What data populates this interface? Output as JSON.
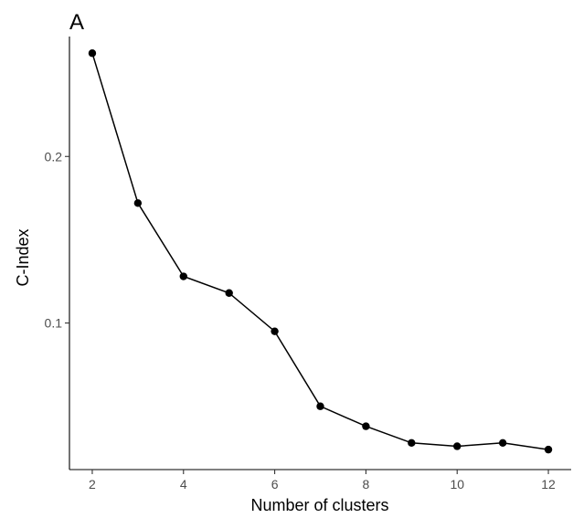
{
  "chart_data": {
    "type": "line",
    "tag": "A",
    "xlabel": "Number of clusters",
    "ylabel": "C-Index",
    "xlim": [
      1.5,
      12.5
    ],
    "ylim": [
      0.012,
      0.272
    ],
    "x_ticks": [
      2,
      4,
      6,
      8,
      10,
      12
    ],
    "y_ticks": [
      0.1,
      0.2
    ],
    "y_tick_labels": [
      "0.1",
      "0.2"
    ],
    "grid": false,
    "series": [
      {
        "x": [
          2,
          3,
          4,
          5,
          6,
          7,
          8,
          9,
          10,
          11,
          12
        ],
        "values": [
          0.262,
          0.172,
          0.128,
          0.118,
          0.095,
          0.05,
          0.038,
          0.028,
          0.026,
          0.028,
          0.024
        ],
        "color": "#000000"
      }
    ]
  }
}
